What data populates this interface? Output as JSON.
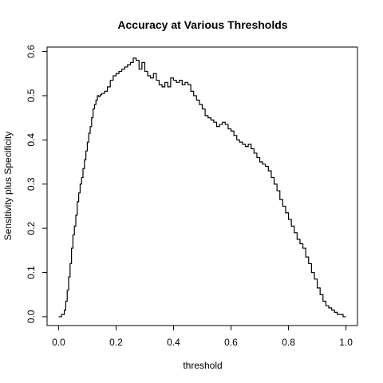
{
  "chart_data": {
    "type": "line",
    "title": "Accuracy at Various Thresholds",
    "xlabel": "threshold",
    "ylabel": "Sensitivity plus Specificity",
    "xlim": [
      -0.04,
      1.04
    ],
    "ylim": [
      -0.02,
      0.61
    ],
    "x_ticks": [
      0.0,
      0.2,
      0.4,
      0.6,
      0.8,
      1.0
    ],
    "x_tick_labels": [
      "0.0",
      "0.2",
      "0.4",
      "0.6",
      "0.8",
      "1.0"
    ],
    "y_ticks": [
      0.0,
      0.1,
      0.2,
      0.3,
      0.4,
      0.5,
      0.6
    ],
    "y_tick_labels": [
      "0.0",
      "0.1",
      "0.2",
      "0.3",
      "0.4",
      "0.5",
      "0.6"
    ],
    "grid": false,
    "line_color": "#000000",
    "series": [
      {
        "x": [
          0.0,
          0.01,
          0.02,
          0.025,
          0.03,
          0.035,
          0.04,
          0.045,
          0.05,
          0.055,
          0.06,
          0.065,
          0.07,
          0.075,
          0.08,
          0.085,
          0.09,
          0.095,
          0.1,
          0.105,
          0.11,
          0.115,
          0.12,
          0.125,
          0.13,
          0.135,
          0.14,
          0.145,
          0.15,
          0.16,
          0.17,
          0.18,
          0.19,
          0.2,
          0.21,
          0.22,
          0.23,
          0.24,
          0.25,
          0.26,
          0.27,
          0.28,
          0.29,
          0.3,
          0.31,
          0.32,
          0.33,
          0.34,
          0.35,
          0.36,
          0.37,
          0.38,
          0.39,
          0.4,
          0.41,
          0.42,
          0.43,
          0.44,
          0.45,
          0.46,
          0.47,
          0.48,
          0.49,
          0.5,
          0.51,
          0.52,
          0.53,
          0.54,
          0.55,
          0.56,
          0.57,
          0.58,
          0.59,
          0.6,
          0.61,
          0.62,
          0.63,
          0.64,
          0.65,
          0.66,
          0.67,
          0.68,
          0.69,
          0.7,
          0.71,
          0.72,
          0.73,
          0.74,
          0.75,
          0.76,
          0.77,
          0.78,
          0.79,
          0.8,
          0.81,
          0.82,
          0.83,
          0.84,
          0.85,
          0.86,
          0.87,
          0.88,
          0.89,
          0.9,
          0.91,
          0.92,
          0.93,
          0.94,
          0.95,
          0.96,
          0.97,
          0.98,
          0.99,
          1.0
        ],
        "y": [
          0.0,
          0.005,
          0.015,
          0.035,
          0.06,
          0.09,
          0.12,
          0.155,
          0.185,
          0.205,
          0.23,
          0.26,
          0.28,
          0.3,
          0.315,
          0.335,
          0.355,
          0.375,
          0.395,
          0.415,
          0.43,
          0.45,
          0.47,
          0.48,
          0.49,
          0.5,
          0.498,
          0.502,
          0.505,
          0.51,
          0.52,
          0.535,
          0.545,
          0.55,
          0.555,
          0.56,
          0.565,
          0.57,
          0.575,
          0.585,
          0.58,
          0.56,
          0.575,
          0.555,
          0.545,
          0.54,
          0.55,
          0.535,
          0.525,
          0.52,
          0.53,
          0.52,
          0.54,
          0.535,
          0.53,
          0.535,
          0.525,
          0.53,
          0.525,
          0.51,
          0.5,
          0.49,
          0.48,
          0.47,
          0.455,
          0.45,
          0.445,
          0.44,
          0.43,
          0.435,
          0.44,
          0.435,
          0.425,
          0.42,
          0.41,
          0.4,
          0.395,
          0.39,
          0.385,
          0.39,
          0.38,
          0.37,
          0.36,
          0.35,
          0.345,
          0.34,
          0.33,
          0.315,
          0.3,
          0.285,
          0.265,
          0.25,
          0.235,
          0.22,
          0.205,
          0.19,
          0.175,
          0.165,
          0.155,
          0.135,
          0.12,
          0.1,
          0.085,
          0.065,
          0.05,
          0.035,
          0.025,
          0.02,
          0.015,
          0.01,
          0.005,
          0.005,
          0.0,
          0.0
        ]
      }
    ]
  }
}
